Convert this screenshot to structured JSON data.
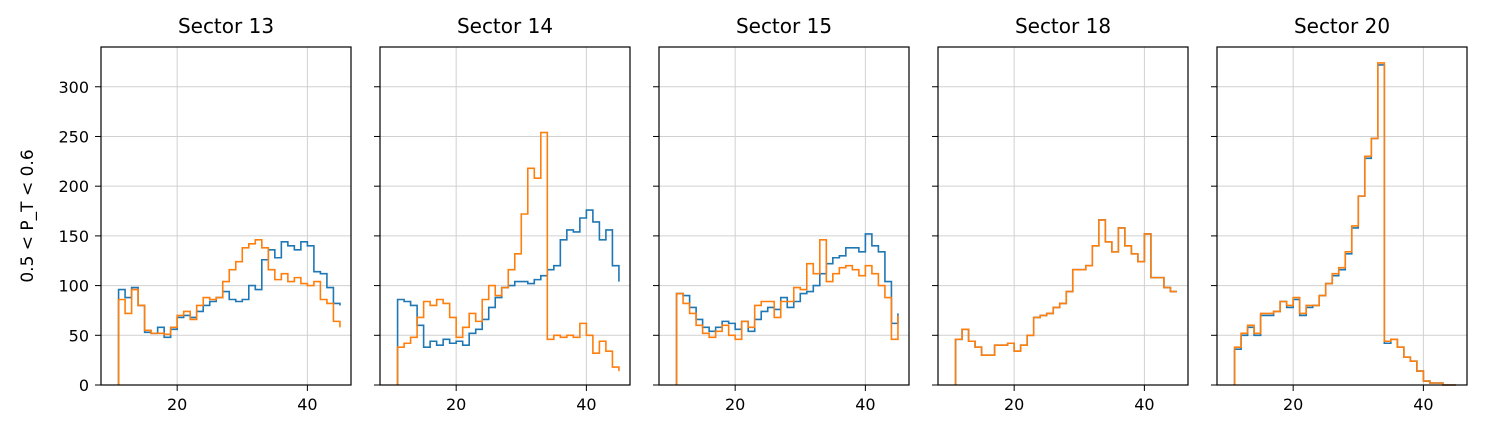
{
  "figure": {
    "ylabel": "0.5 < P_T < 0.6"
  },
  "colors": {
    "series_a": "#1f77b4",
    "series_b": "#ff7f0e",
    "grid": "#d0d0d0"
  },
  "chart_data": [
    {
      "type": "histogram",
      "title": "Sector 13",
      "xlim": [
        8.3,
        46.7
      ],
      "ylim": [
        0,
        340
      ],
      "xticks": [
        20,
        40
      ],
      "yticks": [
        0,
        50,
        100,
        150,
        200,
        250,
        300
      ],
      "grid": true,
      "bin_edges": [
        11,
        12,
        13,
        14,
        15,
        16,
        17,
        18,
        19,
        20,
        21,
        22,
        23,
        24,
        25,
        26,
        27,
        28,
        29,
        30,
        31,
        32,
        33,
        34,
        35,
        36,
        37,
        38,
        39,
        40,
        41,
        42,
        43,
        44,
        45
      ],
      "series": [
        {
          "values": [
            96,
            88,
            98,
            80,
            53,
            52,
            58,
            48,
            56,
            68,
            70,
            68,
            74,
            80,
            84,
            88,
            94,
            86,
            84,
            86,
            100,
            96,
            126,
            136,
            128,
            144,
            140,
            136,
            144,
            140,
            114,
            112,
            98,
            82,
            80
          ]
        },
        {
          "values": [
            86,
            72,
            96,
            80,
            55,
            52,
            52,
            51,
            58,
            70,
            74,
            66,
            80,
            88,
            86,
            88,
            104,
            116,
            124,
            138,
            142,
            146,
            138,
            116,
            106,
            112,
            104,
            108,
            102,
            100,
            104,
            86,
            82,
            64,
            58
          ]
        }
      ]
    },
    {
      "type": "histogram",
      "title": "Sector 14",
      "xlim": [
        8.3,
        46.7
      ],
      "ylim": [
        0,
        340
      ],
      "xticks": [
        20,
        40
      ],
      "yticks": [
        0,
        50,
        100,
        150,
        200,
        250,
        300
      ],
      "grid": true,
      "bin_edges": [
        11,
        12,
        13,
        14,
        15,
        16,
        17,
        18,
        19,
        20,
        21,
        22,
        23,
        24,
        25,
        26,
        27,
        28,
        29,
        30,
        31,
        32,
        33,
        34,
        35,
        36,
        37,
        38,
        39,
        40,
        41,
        42,
        43,
        44,
        45
      ],
      "series": [
        {
          "values": [
            86,
            84,
            80,
            60,
            38,
            44,
            40,
            46,
            42,
            44,
            40,
            52,
            56,
            66,
            78,
            88,
            98,
            100,
            104,
            104,
            102,
            106,
            110,
            116,
            120,
            146,
            156,
            154,
            168,
            176,
            164,
            146,
            156,
            120,
            104
          ]
        },
        {
          "values": [
            38,
            42,
            48,
            68,
            84,
            80,
            86,
            82,
            68,
            48,
            58,
            72,
            64,
            86,
            100,
            90,
            98,
            116,
            132,
            172,
            218,
            208,
            254,
            46,
            50,
            48,
            50,
            48,
            62,
            50,
            32,
            44,
            34,
            18,
            14
          ]
        }
      ]
    },
    {
      "type": "histogram",
      "title": "Sector 15",
      "xlim": [
        8.3,
        46.7
      ],
      "ylim": [
        0,
        340
      ],
      "xticks": [
        20,
        40
      ],
      "yticks": [
        0,
        50,
        100,
        150,
        200,
        250,
        300
      ],
      "grid": true,
      "bin_edges": [
        11,
        12,
        13,
        14,
        15,
        16,
        17,
        18,
        19,
        20,
        21,
        22,
        23,
        24,
        25,
        26,
        27,
        28,
        29,
        30,
        31,
        32,
        33,
        34,
        35,
        36,
        37,
        38,
        39,
        40,
        41,
        42,
        43,
        44,
        45
      ],
      "series": [
        {
          "values": [
            92,
            90,
            78,
            66,
            58,
            54,
            58,
            64,
            62,
            56,
            64,
            54,
            66,
            74,
            78,
            76,
            88,
            78,
            84,
            92,
            94,
            100,
            112,
            122,
            128,
            130,
            138,
            138,
            134,
            152,
            140,
            134,
            104,
            62,
            72
          ]
        },
        {
          "values": [
            92,
            82,
            72,
            60,
            52,
            48,
            54,
            60,
            50,
            46,
            64,
            58,
            80,
            84,
            84,
            68,
            84,
            84,
            98,
            96,
            122,
            112,
            146,
            104,
            112,
            118,
            120,
            116,
            110,
            120,
            112,
            100,
            88,
            46,
            70
          ]
        }
      ]
    },
    {
      "type": "histogram",
      "title": "Sector 18",
      "xlim": [
        8.3,
        46.7
      ],
      "ylim": [
        0,
        340
      ],
      "xticks": [
        20,
        40
      ],
      "yticks": [
        0,
        50,
        100,
        150,
        200,
        250,
        300
      ],
      "grid": true,
      "bin_edges": [
        11,
        12,
        13,
        14,
        15,
        16,
        17,
        18,
        19,
        20,
        21,
        22,
        23,
        24,
        25,
        26,
        27,
        28,
        29,
        30,
        31,
        32,
        33,
        34,
        35,
        36,
        37,
        38,
        39,
        40,
        41,
        42,
        43,
        44,
        45
      ],
      "series": [
        {
          "values": [
            46,
            56,
            44,
            38,
            30,
            30,
            40,
            40,
            42,
            34,
            40,
            50,
            68,
            70,
            72,
            78,
            82,
            94,
            116,
            116,
            120,
            140,
            166,
            144,
            134,
            158,
            140,
            132,
            124,
            152,
            108,
            108,
            98,
            94,
            94
          ]
        },
        {
          "values": [
            46,
            56,
            44,
            38,
            30,
            30,
            40,
            40,
            42,
            34,
            40,
            50,
            68,
            70,
            72,
            78,
            82,
            94,
            116,
            116,
            120,
            140,
            166,
            144,
            134,
            158,
            140,
            132,
            124,
            152,
            108,
            108,
            98,
            94,
            94
          ]
        }
      ]
    },
    {
      "type": "histogram",
      "title": "Sector 20",
      "xlim": [
        8.3,
        46.7
      ],
      "ylim": [
        0,
        340
      ],
      "xticks": [
        20,
        40
      ],
      "yticks": [
        0,
        50,
        100,
        150,
        200,
        250,
        300
      ],
      "grid": true,
      "bin_edges": [
        11,
        12,
        13,
        14,
        15,
        16,
        17,
        18,
        19,
        20,
        21,
        22,
        23,
        24,
        25,
        26,
        27,
        28,
        29,
        30,
        31,
        32,
        33,
        34,
        35,
        36,
        37,
        38,
        39,
        40,
        41,
        42,
        43,
        44,
        45
      ],
      "series": [
        {
          "values": [
            36,
            50,
            58,
            50,
            70,
            70,
            74,
            84,
            78,
            86,
            70,
            78,
            80,
            90,
            102,
            110,
            116,
            132,
            158,
            190,
            228,
            248,
            322,
            42,
            46,
            38,
            28,
            24,
            14,
            4,
            2,
            2,
            0,
            0,
            0
          ]
        },
        {
          "values": [
            38,
            52,
            60,
            52,
            72,
            72,
            74,
            84,
            80,
            88,
            72,
            80,
            80,
            90,
            102,
            112,
            118,
            134,
            160,
            190,
            230,
            248,
            324,
            44,
            46,
            38,
            28,
            24,
            14,
            4,
            2,
            2,
            0,
            0,
            0
          ]
        }
      ]
    }
  ]
}
